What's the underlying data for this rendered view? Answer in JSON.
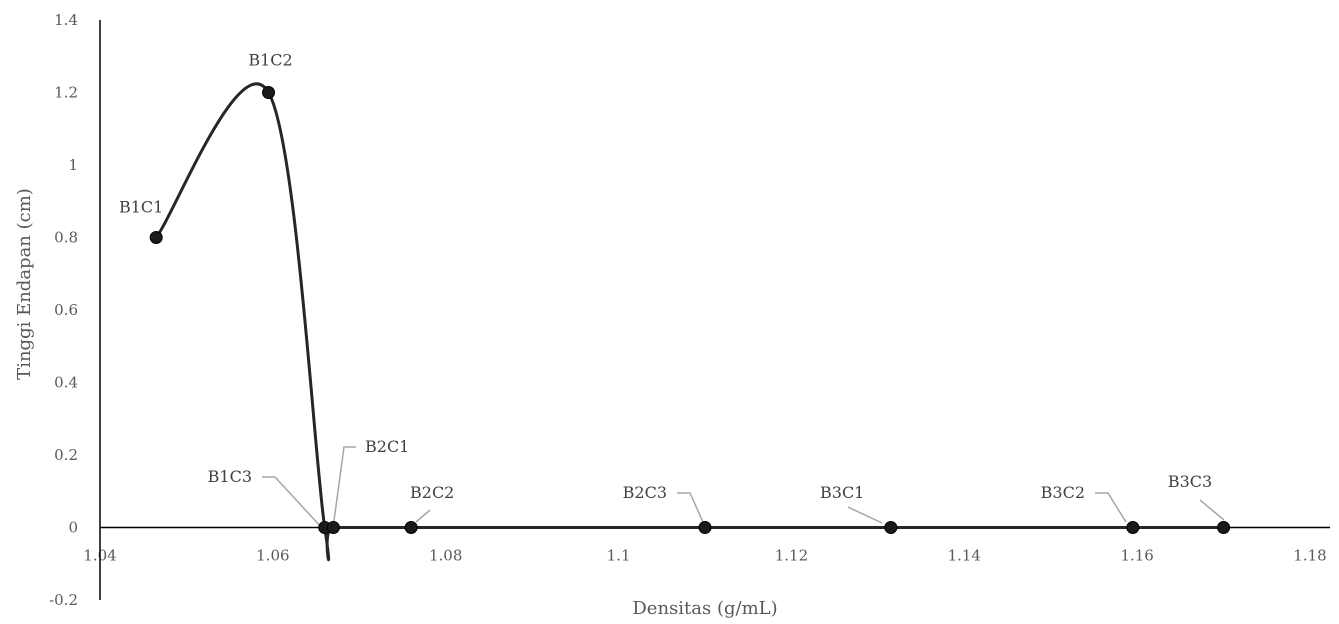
{
  "chart_data": {
    "type": "scatter",
    "title": "",
    "xlabel": "Densitas (g/mL)",
    "ylabel": "Tinggi Endapan (cm)",
    "xlim": [
      1.04,
      1.18
    ],
    "ylim": [
      -0.2,
      1.4
    ],
    "xticks": [
      "1.04",
      "1.06",
      "1.08",
      "1.1",
      "1.12",
      "1.14",
      "1.16",
      "1.18"
    ],
    "yticks": [
      "-0.2",
      "0",
      "0.2",
      "0.4",
      "0.6",
      "0.8",
      "1",
      "1.2",
      "1.4"
    ],
    "smoothed_line": true,
    "line_color": "#262626",
    "marker_color": "#1a1a1a",
    "leader_line_color": "#a6a6a6",
    "points": [
      {
        "label": "B1C1",
        "x": 1.0465,
        "y": 0.8
      },
      {
        "label": "B1C2",
        "x": 1.0595,
        "y": 1.2
      },
      {
        "label": "B1C3",
        "x": 1.066,
        "y": 0
      },
      {
        "label": "B2C1",
        "x": 1.067,
        "y": 0
      },
      {
        "label": "B2C2",
        "x": 1.076,
        "y": 0
      },
      {
        "label": "B2C3",
        "x": 1.11,
        "y": 0
      },
      {
        "label": "B3C1",
        "x": 1.1315,
        "y": 0
      },
      {
        "label": "B3C2",
        "x": 1.1595,
        "y": 0
      },
      {
        "label": "B3C3",
        "x": 1.17,
        "y": 0
      }
    ]
  }
}
